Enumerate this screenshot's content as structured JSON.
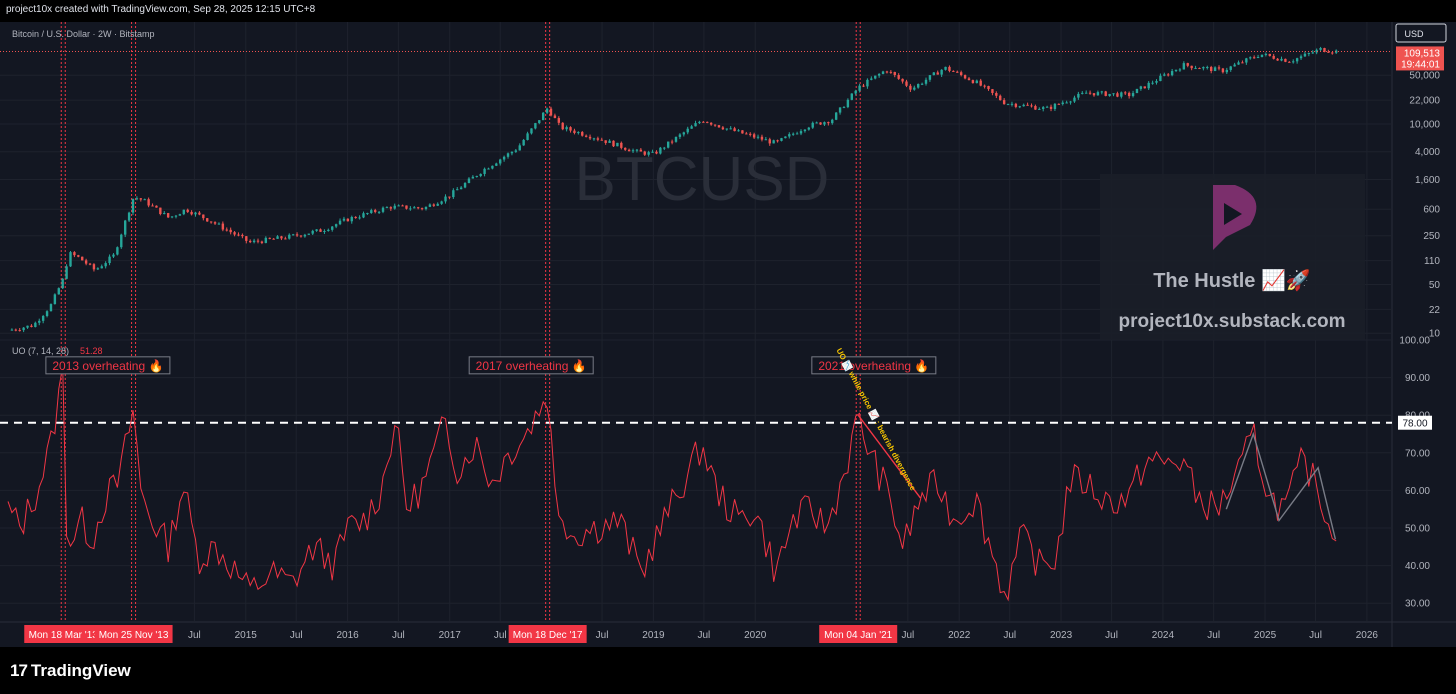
{
  "header": {
    "credit": "project10x created with TradingView.com, Sep 28, 2025 12:15 UTC+8"
  },
  "footer": {
    "brand": "TradingView",
    "logo_mark": "17"
  },
  "colors": {
    "background": "#131722",
    "up": "#26a69a",
    "down": "#ef5350",
    "uo_line": "#f23645",
    "vline": "#f23645",
    "text": "#b2b5be"
  },
  "chart_data": [
    {
      "type": "candlestick",
      "title": "Bitcoin / U.S. Dollar · 2W · Bitstamp",
      "watermark": "BTCUSD",
      "currency_button": "USD",
      "yscale": "log",
      "ylim": [
        8,
        140000
      ],
      "y_ticks": [
        "50,000",
        "22,000",
        "10,000",
        "4,000",
        "1,600",
        "600",
        "250",
        "110",
        "50",
        "22",
        "10"
      ],
      "y_tick_values": [
        50000,
        22000,
        10000,
        4000,
        1600,
        600,
        250,
        110,
        50,
        22,
        10
      ],
      "last_price": "109,513",
      "last_price_value": 109513,
      "countdown": "19:44:01",
      "xlim": [
        "2012-09-01",
        "2026-04-01"
      ],
      "close_path": [
        [
          "2012-09-01",
          11
        ],
        [
          "2012-12-01",
          13
        ],
        [
          "2013-02-01",
          25
        ],
        [
          "2013-03-18",
          60
        ],
        [
          "2013-04-08",
          140
        ],
        [
          "2013-05-15",
          120
        ],
        [
          "2013-07-10",
          80
        ],
        [
          "2013-09-15",
          130
        ],
        [
          "2013-11-25",
          900
        ],
        [
          "2014-01-01",
          800
        ],
        [
          "2014-04-01",
          450
        ],
        [
          "2014-06-01",
          600
        ],
        [
          "2014-09-01",
          400
        ],
        [
          "2015-01-15",
          200
        ],
        [
          "2015-06-01",
          240
        ],
        [
          "2015-10-01",
          300
        ],
        [
          "2016-01-01",
          430
        ],
        [
          "2016-06-01",
          650
        ],
        [
          "2016-10-01",
          620
        ],
        [
          "2017-01-01",
          950
        ],
        [
          "2017-05-01",
          2200
        ],
        [
          "2017-09-01",
          4500
        ],
        [
          "2017-12-18",
          17000
        ],
        [
          "2018-02-01",
          9000
        ],
        [
          "2018-06-01",
          6500
        ],
        [
          "2018-11-01",
          4000
        ],
        [
          "2019-01-01",
          3700
        ],
        [
          "2019-06-25",
          11500
        ],
        [
          "2019-10-01",
          8300
        ],
        [
          "2020-03-15",
          5300
        ],
        [
          "2020-07-01",
          9200
        ],
        [
          "2020-10-01",
          11500
        ],
        [
          "2021-01-04",
          33000
        ],
        [
          "2021-04-15",
          60000
        ],
        [
          "2021-07-15",
          32000
        ],
        [
          "2021-11-10",
          64000
        ],
        [
          "2022-03-01",
          40000
        ],
        [
          "2022-06-15",
          20000
        ],
        [
          "2022-11-10",
          16500
        ],
        [
          "2023-04-01",
          28000
        ],
        [
          "2023-09-01",
          26000
        ],
        [
          "2024-03-15",
          70000
        ],
        [
          "2024-08-01",
          58000
        ],
        [
          "2024-12-15",
          100000
        ],
        [
          "2025-04-01",
          80000
        ],
        [
          "2025-07-20",
          118000
        ],
        [
          "2025-09-15",
          109513
        ]
      ],
      "annotations": [
        {
          "text": "2013 overheating 🔥",
          "date": "2013-08-25",
          "value": 3.3
        },
        {
          "text": "2017 overheating 🔥",
          "date": "2017-10-20",
          "value": 3.3
        },
        {
          "text": "2021 overheating 🔥",
          "date": "2021-03-01",
          "value": 3.3
        }
      ]
    },
    {
      "type": "line",
      "series": [
        {
          "name": "UO (7, 14, 28)",
          "last_value": "51.28"
        }
      ],
      "legend_label": "UO (7, 14, 28)",
      "legend_value": "51.28",
      "ylim": [
        25,
        100
      ],
      "y_ticks": [
        "100.00",
        "90.00",
        "80.00",
        "70.00",
        "60.00",
        "50.00",
        "40.00",
        "30.00"
      ],
      "y_tick_values": [
        100,
        90,
        80,
        70,
        60,
        50,
        40,
        30
      ],
      "threshold": {
        "value": 78,
        "label": "78.00"
      },
      "uo_path": [
        [
          "2012-09-01",
          55
        ],
        [
          "2012-10-15",
          50
        ],
        [
          "2012-12-15",
          60
        ],
        [
          "2013-02-01",
          72
        ],
        [
          "2013-03-18",
          92
        ],
        [
          "2013-04-01",
          45
        ],
        [
          "2013-05-20",
          52
        ],
        [
          "2013-07-01",
          47
        ],
        [
          "2013-08-15",
          58
        ],
        [
          "2013-10-01",
          62
        ],
        [
          "2013-11-25",
          82
        ],
        [
          "2013-12-20",
          60
        ],
        [
          "2014-02-01",
          52
        ],
        [
          "2014-04-01",
          45
        ],
        [
          "2014-05-20",
          62
        ],
        [
          "2014-07-15",
          42
        ],
        [
          "2014-09-15",
          45
        ],
        [
          "2014-12-01",
          38
        ],
        [
          "2015-01-15",
          33
        ],
        [
          "2015-04-01",
          38
        ],
        [
          "2015-06-15",
          35
        ],
        [
          "2015-09-01",
          45
        ],
        [
          "2015-11-15",
          40
        ],
        [
          "2016-01-01",
          50
        ],
        [
          "2016-03-01",
          52
        ],
        [
          "2016-05-01",
          60
        ],
        [
          "2016-06-20",
          79
        ],
        [
          "2016-08-01",
          55
        ],
        [
          "2016-10-01",
          62
        ],
        [
          "2016-12-15",
          78
        ],
        [
          "2017-02-01",
          65
        ],
        [
          "2017-04-01",
          73
        ],
        [
          "2017-06-01",
          62
        ],
        [
          "2017-08-01",
          70
        ],
        [
          "2017-10-01",
          75
        ],
        [
          "2017-12-18",
          86
        ],
        [
          "2018-01-15",
          58
        ],
        [
          "2018-03-15",
          48
        ],
        [
          "2018-06-01",
          50
        ],
        [
          "2018-09-01",
          52
        ],
        [
          "2018-11-20",
          38
        ],
        [
          "2019-01-01",
          46
        ],
        [
          "2019-03-01",
          55
        ],
        [
          "2019-06-25",
          72
        ],
        [
          "2019-08-15",
          60
        ],
        [
          "2019-11-01",
          52
        ],
        [
          "2020-01-01",
          55
        ],
        [
          "2020-03-15",
          38
        ],
        [
          "2020-05-15",
          52
        ],
        [
          "2020-07-15",
          55
        ],
        [
          "2020-09-15",
          50
        ],
        [
          "2020-11-15",
          65
        ],
        [
          "2021-01-04",
          79
        ],
        [
          "2021-02-15",
          70
        ],
        [
          "2021-04-15",
          60
        ],
        [
          "2021-06-15",
          45
        ],
        [
          "2021-08-15",
          58
        ],
        [
          "2021-10-15",
          62
        ],
        [
          "2021-12-15",
          52
        ],
        [
          "2022-03-01",
          58
        ],
        [
          "2022-06-15",
          32
        ],
        [
          "2022-08-15",
          48
        ],
        [
          "2022-10-15",
          40
        ],
        [
          "2022-12-15",
          42
        ],
        [
          "2023-02-01",
          63
        ],
        [
          "2023-04-01",
          62
        ],
        [
          "2023-06-15",
          57
        ],
        [
          "2023-09-01",
          58
        ],
        [
          "2023-11-01",
          68
        ],
        [
          "2024-01-01",
          67
        ],
        [
          "2024-03-15",
          68
        ],
        [
          "2024-05-01",
          58
        ],
        [
          "2024-07-15",
          55
        ],
        [
          "2024-10-01",
          65
        ],
        [
          "2024-11-20",
          75
        ],
        [
          "2025-01-15",
          58
        ],
        [
          "2025-03-15",
          55
        ],
        [
          "2025-05-15",
          68
        ],
        [
          "2025-07-15",
          60
        ],
        [
          "2025-08-25",
          48
        ],
        [
          "2025-09-15",
          51.28
        ]
      ],
      "divergence_note": "UO 📉 while price 📈 : bearish divergence",
      "trendlines": [
        {
          "color": "#787b86",
          "points": [
            [
              "2024-08-15",
              55
            ],
            [
              "2024-11-20",
              75
            ],
            [
              "2025-02-20",
              52
            ],
            [
              "2025-07-10",
              66
            ],
            [
              "2025-09-10",
              47
            ]
          ]
        },
        {
          "color": "#f23645",
          "points": [
            [
              "2021-01-04",
              80
            ],
            [
              "2021-08-15",
              58
            ]
          ]
        }
      ]
    }
  ],
  "time_axis": {
    "labels": [
      {
        "text": "Jul",
        "date": "2014-07-01"
      },
      {
        "text": "2015",
        "date": "2015-01-01"
      },
      {
        "text": "Jul",
        "date": "2015-07-01"
      },
      {
        "text": "2016",
        "date": "2016-01-01"
      },
      {
        "text": "Jul",
        "date": "2016-07-01"
      },
      {
        "text": "2017",
        "date": "2017-01-01"
      },
      {
        "text": "Jul",
        "date": "2017-07-01"
      },
      {
        "text": "Jul",
        "date": "2018-07-01"
      },
      {
        "text": "2019",
        "date": "2019-01-01"
      },
      {
        "text": "Jul",
        "date": "2019-07-01"
      },
      {
        "text": "2020",
        "date": "2020-01-01"
      },
      {
        "text": "Jul",
        "date": "2021-07-01"
      },
      {
        "text": "2022",
        "date": "2022-01-01"
      },
      {
        "text": "Jul",
        "date": "2022-07-01"
      },
      {
        "text": "2023",
        "date": "2023-01-01"
      },
      {
        "text": "Jul",
        "date": "2023-07-01"
      },
      {
        "text": "2024",
        "date": "2024-01-01"
      },
      {
        "text": "Jul",
        "date": "2024-07-01"
      },
      {
        "text": "2025",
        "date": "2025-01-01"
      },
      {
        "text": "Jul",
        "date": "2025-07-01"
      },
      {
        "text": "2026",
        "date": "2026-01-01"
      }
    ],
    "markers": [
      {
        "text": "Mon 18 Mar '13",
        "date": "2013-03-18"
      },
      {
        "text": "Mon 25 Nov '13",
        "date": "2013-11-25"
      },
      {
        "text": "Mon 18 Dec '17",
        "date": "2017-12-18"
      },
      {
        "text": "Mon 04 Jan '21",
        "date": "2021-01-04"
      }
    ]
  },
  "overlay_brand": {
    "name": "The Hustle 📈🚀",
    "site": "project10x.substack.com"
  }
}
